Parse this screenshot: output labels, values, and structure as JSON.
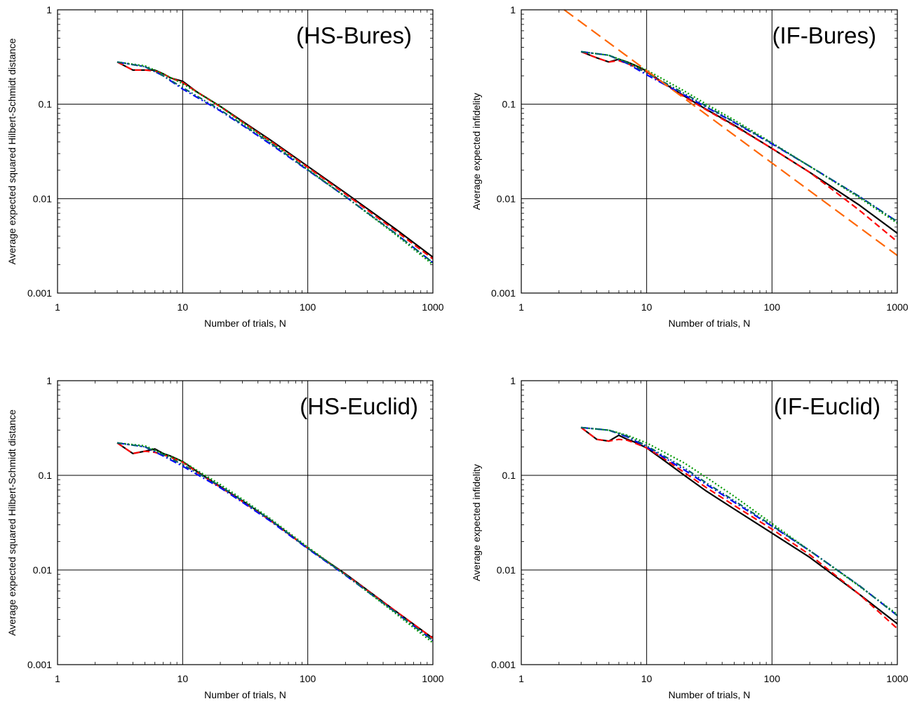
{
  "chart_data": [
    {
      "type": "line",
      "title": "(HS-Bures)",
      "xlabel": "Number of trials, N",
      "ylabel": "Average expected squared Hilbert-Schmidt distance",
      "xscale": "log",
      "yscale": "log",
      "xlim": [
        1,
        1000
      ],
      "ylim": [
        0.001,
        1
      ],
      "xticks": [
        "1",
        "10",
        "100",
        "1000"
      ],
      "yticks": [
        "0.001",
        "0.01",
        "0.1",
        "1"
      ],
      "grid": "decades",
      "series": [
        {
          "color": "#000000",
          "dash": "solid",
          "x": [
            3,
            4,
            5,
            6,
            7,
            8,
            10,
            13,
            20,
            30,
            50,
            100,
            200,
            500,
            1000
          ],
          "y": [
            0.28,
            0.23,
            0.23,
            0.23,
            0.21,
            0.19,
            0.175,
            0.135,
            0.095,
            0.066,
            0.042,
            0.022,
            0.0115,
            0.0048,
            0.0024
          ]
        },
        {
          "color": "#ff0000",
          "dash": "dashed",
          "x": [
            3,
            4,
            5,
            6,
            7,
            8,
            10,
            13,
            20,
            30,
            50,
            100,
            200,
            500,
            1000
          ],
          "y": [
            0.28,
            0.23,
            0.23,
            0.225,
            0.21,
            0.19,
            0.17,
            0.135,
            0.094,
            0.065,
            0.041,
            0.0215,
            0.0112,
            0.0046,
            0.0023
          ]
        },
        {
          "color": "#0000ff",
          "dash": "dashdot",
          "x": [
            3,
            5,
            7,
            10,
            20,
            30,
            50,
            100,
            200,
            500,
            1000
          ],
          "y": [
            0.28,
            0.25,
            0.2,
            0.145,
            0.085,
            0.06,
            0.038,
            0.02,
            0.0105,
            0.0043,
            0.0021
          ]
        },
        {
          "color": "#009900",
          "dash": "dotted",
          "x": [
            3,
            5,
            7,
            10,
            20,
            30,
            50,
            100,
            200,
            500,
            1000
          ],
          "y": [
            0.28,
            0.255,
            0.21,
            0.165,
            0.095,
            0.064,
            0.04,
            0.0205,
            0.0105,
            0.0042,
            0.002
          ]
        },
        {
          "color": "#006666",
          "dash": "dashdotdot",
          "x": [
            3,
            5,
            7,
            10,
            20,
            30,
            50,
            100,
            200,
            500,
            1000
          ],
          "y": [
            0.28,
            0.25,
            0.2,
            0.15,
            0.087,
            0.061,
            0.039,
            0.0202,
            0.0105,
            0.0043,
            0.0021
          ]
        }
      ]
    },
    {
      "type": "line",
      "title": "(IF-Bures)",
      "xlabel": "Number of trials, N",
      "ylabel": "Average expected infidelity",
      "xscale": "log",
      "yscale": "log",
      "xlim": [
        1,
        1000
      ],
      "ylim": [
        0.001,
        1
      ],
      "xticks": [
        "1",
        "10",
        "100",
        "1000"
      ],
      "yticks": [
        "0.001",
        "0.01",
        "0.1",
        "1"
      ],
      "grid": "decades",
      "series": [
        {
          "color": "#000000",
          "dash": "solid",
          "x": [
            3,
            4,
            5,
            6,
            7,
            8,
            10,
            13,
            20,
            30,
            50,
            100,
            200,
            500,
            1000
          ],
          "y": [
            0.36,
            0.31,
            0.28,
            0.3,
            0.28,
            0.26,
            0.225,
            0.175,
            0.122,
            0.088,
            0.06,
            0.034,
            0.019,
            0.0085,
            0.0043
          ]
        },
        {
          "color": "#ff0000",
          "dash": "dashed",
          "x": [
            3,
            4,
            5,
            6,
            7,
            8,
            10,
            13,
            20,
            30,
            50,
            100,
            200,
            500,
            1000
          ],
          "y": [
            0.36,
            0.31,
            0.28,
            0.29,
            0.27,
            0.25,
            0.22,
            0.172,
            0.12,
            0.087,
            0.059,
            0.034,
            0.019,
            0.0075,
            0.0035
          ]
        },
        {
          "color": "#0000ff",
          "dash": "dashdot",
          "x": [
            3,
            5,
            7,
            10,
            20,
            30,
            50,
            100,
            200,
            500,
            1000
          ],
          "y": [
            0.36,
            0.33,
            0.27,
            0.205,
            0.125,
            0.093,
            0.064,
            0.038,
            0.022,
            0.0105,
            0.0057
          ]
        },
        {
          "color": "#009900",
          "dash": "dotted",
          "x": [
            3,
            5,
            7,
            10,
            20,
            30,
            50,
            100,
            200,
            500,
            1000
          ],
          "y": [
            0.36,
            0.33,
            0.28,
            0.23,
            0.138,
            0.1,
            0.068,
            0.039,
            0.022,
            0.0102,
            0.0055
          ]
        },
        {
          "color": "#006666",
          "dash": "dashdotdot",
          "x": [
            3,
            5,
            7,
            10,
            20,
            30,
            50,
            100,
            200,
            500,
            1000
          ],
          "y": [
            0.36,
            0.33,
            0.275,
            0.215,
            0.13,
            0.095,
            0.065,
            0.0385,
            0.022,
            0.0105,
            0.0057
          ]
        },
        {
          "color": "#ff6600",
          "dash": "longdash",
          "x": [
            2.2,
            1000
          ],
          "y": [
            1.0,
            0.0025
          ]
        }
      ]
    },
    {
      "type": "line",
      "title": "(HS-Euclid)",
      "xlabel": "Number of trials, N",
      "ylabel": "Average expected squared Hilbert-Schmidt distance",
      "xscale": "log",
      "yscale": "log",
      "xlim": [
        1,
        1000
      ],
      "ylim": [
        0.001,
        1
      ],
      "xticks": [
        "1",
        "10",
        "100",
        "1000"
      ],
      "yticks": [
        "0.001",
        "0.01",
        "0.1",
        "1"
      ],
      "grid": "decades",
      "series": [
        {
          "color": "#000000",
          "dash": "solid",
          "x": [
            3,
            4,
            5,
            6,
            7,
            8,
            10,
            13,
            20,
            30,
            50,
            100,
            200,
            500,
            1000
          ],
          "y": [
            0.22,
            0.17,
            0.18,
            0.19,
            0.17,
            0.16,
            0.14,
            0.11,
            0.076,
            0.054,
            0.034,
            0.017,
            0.0091,
            0.0037,
            0.0019
          ]
        },
        {
          "color": "#ff0000",
          "dash": "dashed",
          "x": [
            3,
            4,
            5,
            6,
            7,
            8,
            10,
            13,
            20,
            30,
            50,
            100,
            200,
            500,
            1000
          ],
          "y": [
            0.22,
            0.17,
            0.18,
            0.175,
            0.165,
            0.155,
            0.138,
            0.108,
            0.075,
            0.053,
            0.0335,
            0.017,
            0.009,
            0.0037,
            0.0019
          ]
        },
        {
          "color": "#0000ff",
          "dash": "dashdot",
          "x": [
            3,
            5,
            7,
            10,
            20,
            30,
            50,
            100,
            200,
            500,
            1000
          ],
          "y": [
            0.22,
            0.2,
            0.16,
            0.125,
            0.074,
            0.052,
            0.033,
            0.0168,
            0.0088,
            0.0036,
            0.0018
          ]
        },
        {
          "color": "#009900",
          "dash": "dotted",
          "x": [
            3,
            5,
            7,
            10,
            20,
            30,
            50,
            100,
            200,
            500,
            1000
          ],
          "y": [
            0.22,
            0.205,
            0.17,
            0.14,
            0.08,
            0.056,
            0.035,
            0.0175,
            0.0089,
            0.0035,
            0.0017
          ]
        },
        {
          "color": "#006666",
          "dash": "dashdotdot",
          "x": [
            3,
            5,
            7,
            10,
            20,
            30,
            50,
            100,
            200,
            500,
            1000
          ],
          "y": [
            0.22,
            0.2,
            0.165,
            0.13,
            0.077,
            0.054,
            0.034,
            0.017,
            0.0089,
            0.0036,
            0.0018
          ]
        }
      ]
    },
    {
      "type": "line",
      "title": "(IF-Euclid)",
      "xlabel": "Number of trials, N",
      "ylabel": "Average expected infidelity",
      "xscale": "log",
      "yscale": "log",
      "xlim": [
        1,
        1000
      ],
      "ylim": [
        0.001,
        1
      ],
      "xticks": [
        "1",
        "10",
        "100",
        "1000"
      ],
      "yticks": [
        "0.001",
        "0.01",
        "0.1",
        "1"
      ],
      "grid": "decades",
      "series": [
        {
          "color": "#000000",
          "dash": "solid",
          "x": [
            3,
            4,
            5,
            6,
            7,
            8,
            10,
            13,
            20,
            30,
            50,
            100,
            200,
            500,
            1000
          ],
          "y": [
            0.32,
            0.24,
            0.23,
            0.265,
            0.24,
            0.225,
            0.195,
            0.152,
            0.1,
            0.068,
            0.044,
            0.0245,
            0.0136,
            0.0055,
            0.0027
          ]
        },
        {
          "color": "#ff0000",
          "dash": "dashed",
          "x": [
            3,
            4,
            5,
            6,
            7,
            8,
            10,
            13,
            20,
            30,
            50,
            100,
            200,
            500,
            1000
          ],
          "y": [
            0.32,
            0.24,
            0.23,
            0.24,
            0.235,
            0.22,
            0.195,
            0.158,
            0.107,
            0.074,
            0.048,
            0.027,
            0.0145,
            0.0055,
            0.0024
          ]
        },
        {
          "color": "#0000ff",
          "dash": "dashdot",
          "x": [
            3,
            5,
            7,
            10,
            20,
            30,
            50,
            100,
            200,
            500,
            1000
          ],
          "y": [
            0.32,
            0.3,
            0.255,
            0.2,
            0.114,
            0.08,
            0.052,
            0.029,
            0.016,
            0.0068,
            0.0033
          ]
        },
        {
          "color": "#009900",
          "dash": "dotted",
          "x": [
            3,
            5,
            7,
            10,
            20,
            30,
            50,
            100,
            200,
            500,
            1000
          ],
          "y": [
            0.32,
            0.3,
            0.265,
            0.22,
            0.135,
            0.095,
            0.06,
            0.031,
            0.016,
            0.0067,
            0.0034
          ]
        },
        {
          "color": "#006666",
          "dash": "dashdotdot",
          "x": [
            3,
            5,
            7,
            10,
            20,
            30,
            50,
            100,
            200,
            500,
            1000
          ],
          "y": [
            0.32,
            0.3,
            0.26,
            0.205,
            0.12,
            0.083,
            0.054,
            0.0295,
            0.016,
            0.0068,
            0.0033
          ]
        }
      ]
    }
  ]
}
